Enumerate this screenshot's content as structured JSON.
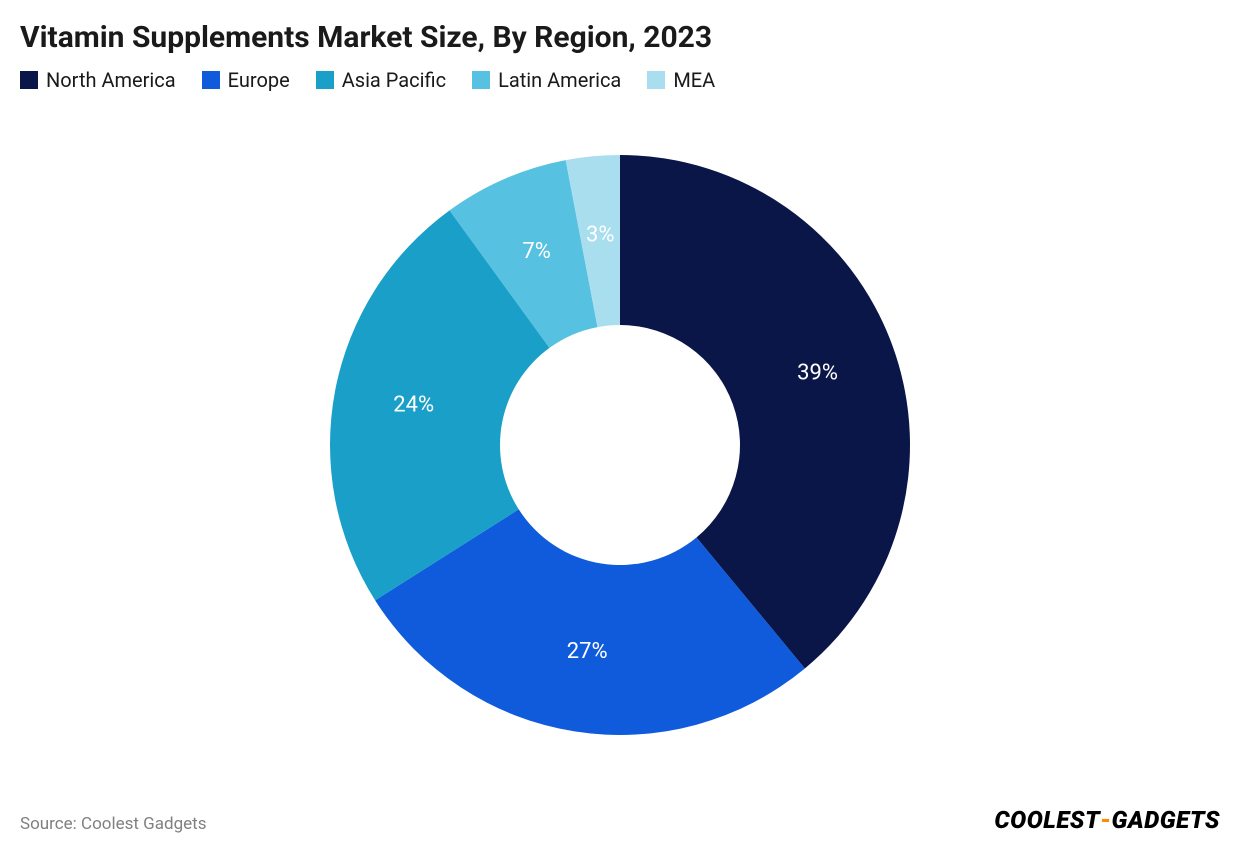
{
  "title": "Vitamin Supplements Market Size, By Region, 2023",
  "title_fontsize": 30,
  "title_fontweight": 700,
  "background_color": "#ffffff",
  "legend_fontsize": 20,
  "chart": {
    "type": "donut",
    "slices": [
      {
        "label": "North America",
        "value": 39,
        "display": "39%",
        "color": "#0a1647"
      },
      {
        "label": "Europe",
        "value": 27,
        "display": "27%",
        "color": "#0f5bdc"
      },
      {
        "label": "Asia Pacific",
        "value": 24,
        "display": "24%",
        "color": "#1aa0c8"
      },
      {
        "label": "Latin America",
        "value": 7,
        "display": "7%",
        "color": "#56c1e0"
      },
      {
        "label": "MEA",
        "value": 3,
        "display": "3%",
        "color": "#a9deef"
      }
    ],
    "start_angle_deg": -90,
    "outer_radius": 290,
    "inner_radius": 120,
    "label_radius": 210,
    "label_fontsize": 22,
    "label_color": "#ffffff",
    "label_dark_color": "#1a1a1a",
    "svg_size": 620
  },
  "source_prefix": "Source: ",
  "source": "Coolest Gadgets",
  "brand_first": "COOLEST",
  "brand_dash": "-",
  "brand_second": "GADGETS"
}
